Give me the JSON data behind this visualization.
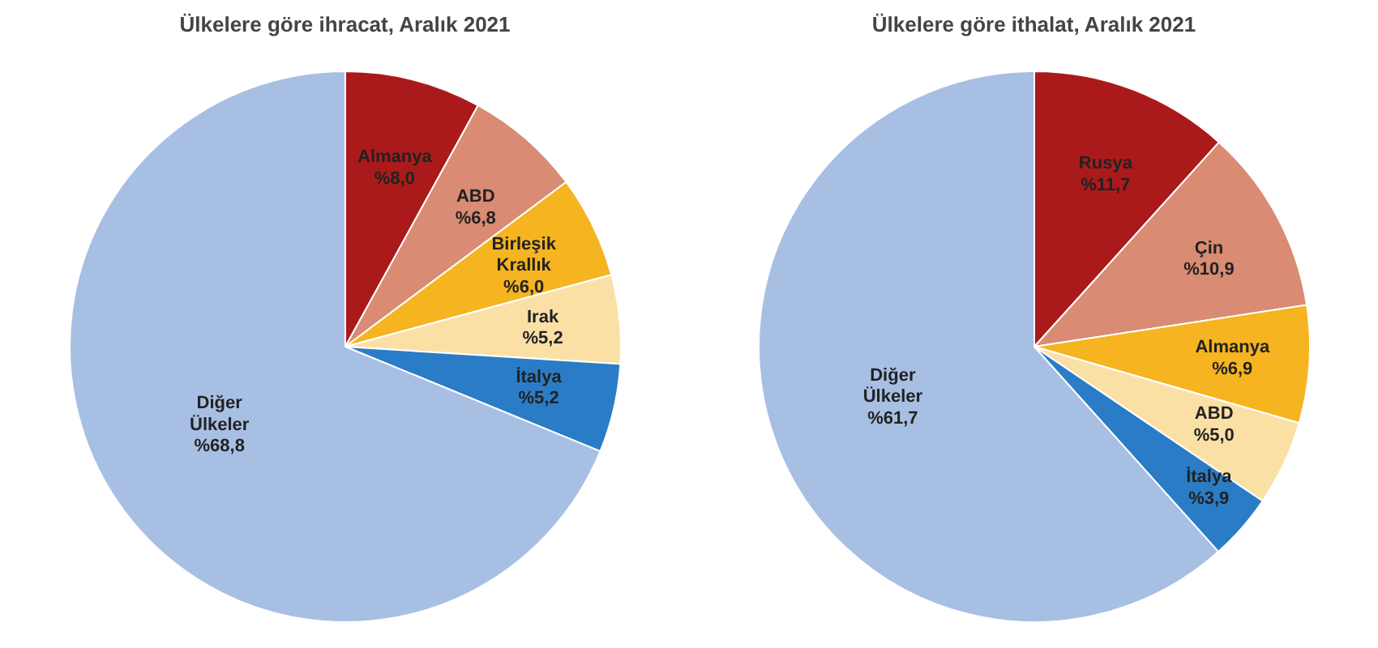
{
  "chart_data": [
    {
      "type": "pie",
      "title": "Ülkelere göre ihracat, Aralık 2021",
      "categories": [
        "Almanya",
        "ABD",
        "Birleşik Krallık",
        "Irak",
        "İtalya",
        "Diğer Ülkeler"
      ],
      "values": [
        8.0,
        6.8,
        6.0,
        5.2,
        5.2,
        68.8
      ],
      "value_labels": [
        "%8,0",
        "%6,8",
        "%6,0",
        "%5,2",
        "%5,2",
        "%68,8"
      ],
      "colors": [
        "#ab1a1a",
        "#d98b73",
        "#f5b420",
        "#fbe0a6",
        "#2b7cc6",
        "#a8bfe4"
      ],
      "legend": false
    },
    {
      "type": "pie",
      "title": "Ülkelere göre ithalat, Aralık 2021",
      "categories": [
        "Rusya",
        "Çin",
        "Almanya",
        "ABD",
        "İtalya",
        "Diğer Ülkeler"
      ],
      "values": [
        11.7,
        10.9,
        6.9,
        5.0,
        3.9,
        61.7
      ],
      "value_labels": [
        "%11,7",
        "%10,9",
        "%6,9",
        "%5,0",
        "%3,9",
        "%61,7"
      ],
      "colors": [
        "#ab1a1a",
        "#d98b73",
        "#f5b420",
        "#fbe0a6",
        "#2b7cc6",
        "#a8bfe4"
      ],
      "legend": false
    }
  ]
}
